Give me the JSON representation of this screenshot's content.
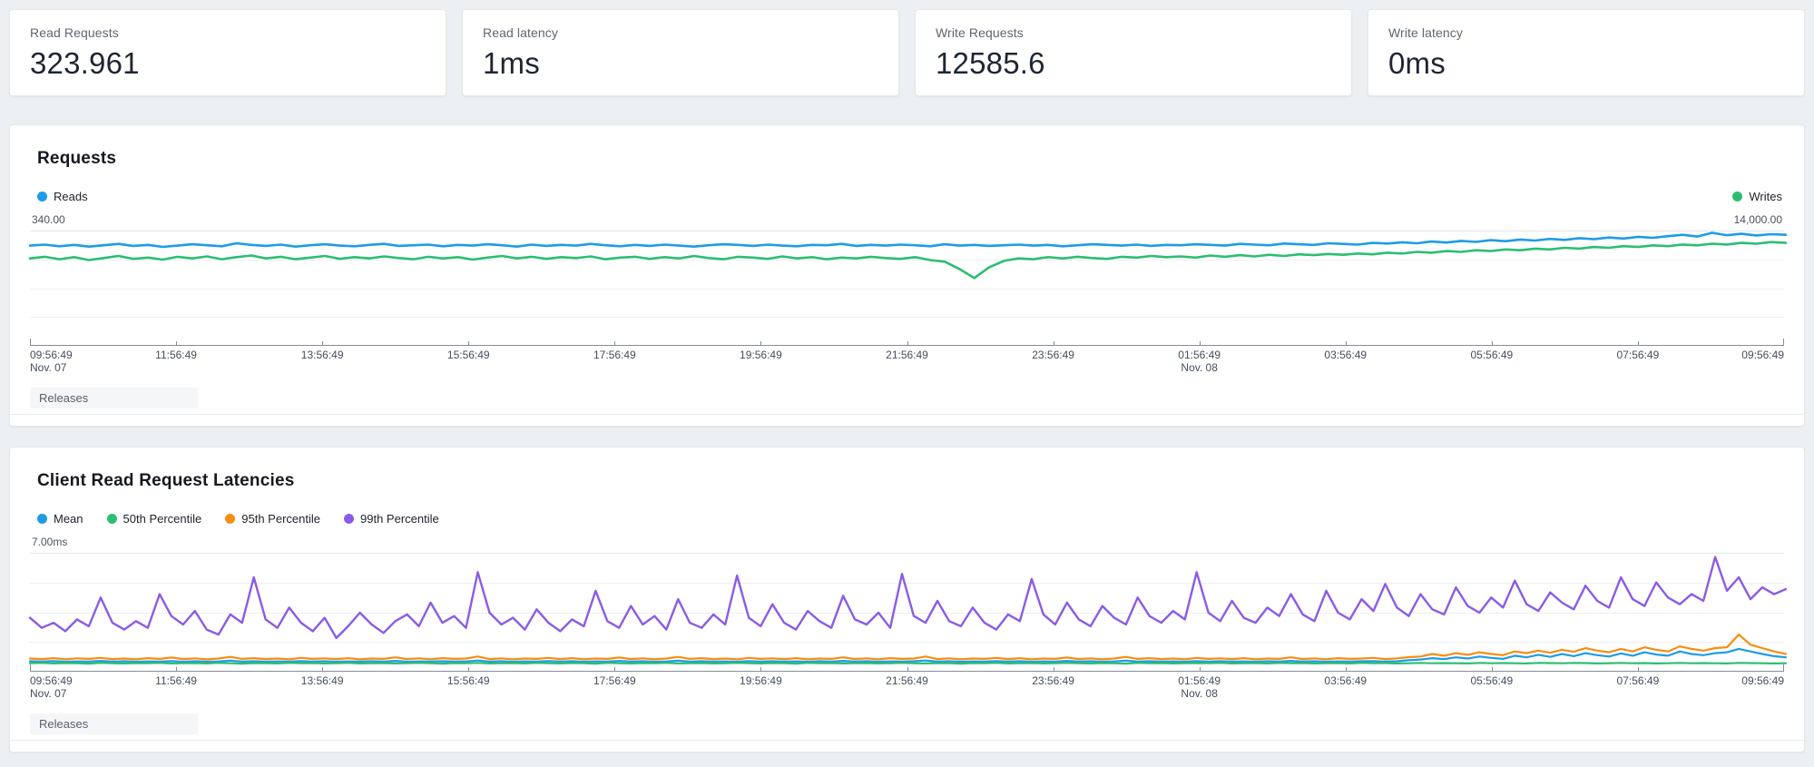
{
  "strings": {
    "releases": "Releases"
  },
  "stat_cards": [
    {
      "label": "Read Requests",
      "value": "323.961"
    },
    {
      "label": "Read latency",
      "value": "1ms"
    },
    {
      "label": "Write Requests",
      "value": "12585.6"
    },
    {
      "label": "Write latency",
      "value": "0ms"
    }
  ],
  "colors": {
    "blue": "#1e9ce6",
    "green": "#2cbe72",
    "orange": "#f88d11",
    "purple": "#8a5ce6",
    "page_bg": "#edf0f3",
    "panel_bg": "#ffffff",
    "axis": "#868d99",
    "grid": "#edeff2"
  },
  "chart_data": [
    {
      "type": "line",
      "title": "Requests",
      "y_axis_left": "340.00",
      "y_axis_right": "14,000.00",
      "ylim_left": [
        0,
        340
      ],
      "ylim_right": [
        0,
        14000
      ],
      "grid": "on",
      "legend_position": "split",
      "x_categories": [
        {
          "t": "09:56:49",
          "sub": "Nov. 07"
        },
        {
          "t": "11:56:49"
        },
        {
          "t": "13:56:49"
        },
        {
          "t": "15:56:49"
        },
        {
          "t": "17:56:49"
        },
        {
          "t": "19:56:49"
        },
        {
          "t": "21:56:49"
        },
        {
          "t": "23:56:49"
        },
        {
          "t": "01:56:49",
          "sub": "Nov. 08"
        },
        {
          "t": "03:56:49"
        },
        {
          "t": "05:56:49"
        },
        {
          "t": "07:56:49"
        },
        {
          "t": "09:56:49"
        }
      ],
      "series": [
        {
          "name": "Reads",
          "color": "#1e9ce6",
          "legend_side": "left",
          "axis_max": 340,
          "width": 2.6,
          "values": [
            298,
            301,
            296,
            300,
            295,
            299,
            303,
            297,
            300,
            294,
            298,
            302,
            299,
            296,
            305,
            300,
            297,
            301,
            295,
            299,
            302,
            298,
            296,
            300,
            303,
            297,
            299,
            301,
            296,
            300,
            298,
            302,
            299,
            295,
            301,
            297,
            300,
            298,
            303,
            299,
            296,
            300,
            297,
            301,
            298,
            295,
            299,
            302,
            300,
            297,
            301,
            298,
            296,
            300,
            299,
            303,
            297,
            300,
            298,
            301,
            299,
            296,
            302,
            298,
            300,
            297,
            299,
            301,
            298,
            300,
            296,
            299,
            302,
            300,
            298,
            301,
            297,
            300,
            299,
            302,
            300,
            298,
            303,
            301,
            299,
            304,
            302,
            300,
            305,
            303,
            301,
            306,
            304,
            308,
            305,
            310,
            307,
            312,
            309,
            314,
            311,
            316,
            313,
            318,
            315,
            320,
            317,
            322,
            319,
            324,
            321,
            326,
            330,
            325,
            336,
            329,
            333,
            328,
            332,
            330
          ]
        },
        {
          "name": "Writes",
          "color": "#2cbe72",
          "legend_side": "right",
          "axis_max": 14000,
          "width": 2.6,
          "values": [
            10700,
            10900,
            10600,
            10850,
            10500,
            10750,
            11000,
            10650,
            10800,
            10550,
            10900,
            10700,
            10950,
            10600,
            10850,
            11050,
            10700,
            10900,
            10600,
            10800,
            11000,
            10650,
            10850,
            10700,
            10950,
            10750,
            10600,
            10900,
            10700,
            10850,
            10550,
            10800,
            11000,
            10700,
            10900,
            10650,
            10850,
            10750,
            10950,
            10600,
            10800,
            10900,
            10650,
            10850,
            10700,
            11000,
            10750,
            10600,
            10900,
            10800,
            10650,
            10950,
            10700,
            10850,
            10600,
            10800,
            10700,
            10900,
            10750,
            10650,
            10850,
            10500,
            10300,
            9400,
            8300,
            9600,
            10400,
            10700,
            10600,
            10850,
            10700,
            10900,
            10750,
            10650,
            10900,
            10800,
            11000,
            10850,
            10950,
            10800,
            11050,
            10900,
            11100,
            10950,
            11150,
            11000,
            11200,
            11100,
            11250,
            11150,
            11300,
            11200,
            11400,
            11300,
            11500,
            11400,
            11600,
            11500,
            11700,
            11600,
            11800,
            11700,
            11900,
            11800,
            12000,
            11900,
            12100,
            12000,
            12200,
            12100,
            12300,
            12200,
            12400,
            12300,
            12500,
            12400,
            12600,
            12500,
            12700,
            12600
          ]
        }
      ]
    },
    {
      "type": "line",
      "title": "Client Read Request Latencies",
      "y_axis_left": "7.00ms",
      "y_axis_right": "",
      "ylim_left": [
        0,
        7
      ],
      "grid": "on",
      "legend_position": "left",
      "x_categories": [
        {
          "t": "09:56:49",
          "sub": "Nov. 07"
        },
        {
          "t": "11:56:49"
        },
        {
          "t": "13:56:49"
        },
        {
          "t": "15:56:49"
        },
        {
          "t": "17:56:49"
        },
        {
          "t": "19:56:49"
        },
        {
          "t": "21:56:49"
        },
        {
          "t": "23:56:49"
        },
        {
          "t": "01:56:49",
          "sub": "Nov. 08"
        },
        {
          "t": "03:56:49"
        },
        {
          "t": "05:56:49"
        },
        {
          "t": "07:56:49"
        },
        {
          "t": "09:56:49"
        }
      ],
      "series": [
        {
          "name": "Mean",
          "color": "#1e9ce6",
          "legend_side": "left",
          "axis_max": 7,
          "width": 2.2,
          "values": [
            0.62,
            0.6,
            0.63,
            0.59,
            0.61,
            0.6,
            0.64,
            0.6,
            0.62,
            0.59,
            0.61,
            0.6,
            0.63,
            0.59,
            0.62,
            0.6,
            0.61,
            0.65,
            0.6,
            0.62,
            0.59,
            0.61,
            0.6,
            0.63,
            0.6,
            0.62,
            0.59,
            0.61,
            0.6,
            0.62,
            0.6,
            0.64,
            0.59,
            0.61,
            0.6,
            0.62,
            0.6,
            0.61,
            0.66,
            0.6,
            0.62,
            0.59,
            0.61,
            0.6,
            0.63,
            0.6,
            0.62,
            0.59,
            0.61,
            0.6,
            0.64,
            0.6,
            0.62,
            0.59,
            0.61,
            0.65,
            0.6,
            0.62,
            0.6,
            0.61,
            0.59,
            0.63,
            0.6,
            0.62,
            0.6,
            0.61,
            0.59,
            0.62,
            0.6,
            0.64,
            0.6,
            0.62,
            0.59,
            0.61,
            0.6,
            0.62,
            0.66,
            0.6,
            0.62,
            0.59,
            0.61,
            0.6,
            0.63,
            0.6,
            0.62,
            0.59,
            0.61,
            0.6,
            0.64,
            0.6,
            0.62,
            0.59,
            0.61,
            0.65,
            0.6,
            0.62,
            0.6,
            0.61,
            0.59,
            0.63,
            0.6,
            0.62,
            0.6,
            0.61,
            0.59,
            0.62,
            0.6,
            0.64,
            0.6,
            0.62,
            0.59,
            0.61,
            0.6,
            0.62,
            0.63,
            0.6,
            0.62,
            0.68,
            0.72,
            0.8,
            0.75,
            0.85,
            0.78,
            0.9,
            0.82,
            0.76,
            0.95,
            0.85,
            1.0,
            0.88,
            1.05,
            0.92,
            1.1,
            0.98,
            0.9,
            1.08,
            0.95,
            1.15,
            1.02,
            0.95,
            1.2,
            1.05,
            0.98,
            1.1,
            1.15,
            1.35,
            1.2,
            1.05,
            0.92,
            0.85
          ]
        },
        {
          "name": "50th Percentile",
          "color": "#2cbe72",
          "legend_side": "left",
          "axis_max": 7,
          "width": 2.2,
          "values": [
            0.5,
            0.52,
            0.49,
            0.51,
            0.5,
            0.48,
            0.52,
            0.5,
            0.49,
            0.51,
            0.5,
            0.52,
            0.49,
            0.5,
            0.51,
            0.49,
            0.52,
            0.5,
            0.48,
            0.51,
            0.5,
            0.49,
            0.52,
            0.5,
            0.51,
            0.49,
            0.5,
            0.52,
            0.49,
            0.5,
            0.51,
            0.49,
            0.5,
            0.52,
            0.5,
            0.48,
            0.51,
            0.5,
            0.52,
            0.49,
            0.5,
            0.51,
            0.49,
            0.52,
            0.5,
            0.49,
            0.51,
            0.5,
            0.48,
            0.52,
            0.5,
            0.49,
            0.51,
            0.5,
            0.52,
            0.49,
            0.5,
            0.51,
            0.49,
            0.5,
            0.52,
            0.5,
            0.49,
            0.51,
            0.5,
            0.48,
            0.52,
            0.5,
            0.51,
            0.49,
            0.5,
            0.51,
            0.49,
            0.5,
            0.52,
            0.5,
            0.49,
            0.51,
            0.5,
            0.48,
            0.51,
            0.5,
            0.52,
            0.49,
            0.5,
            0.51,
            0.49,
            0.5,
            0.52,
            0.5,
            0.49,
            0.51,
            0.5,
            0.48,
            0.52,
            0.5,
            0.51,
            0.49,
            0.5,
            0.51,
            0.5,
            0.52,
            0.49,
            0.5,
            0.51,
            0.49,
            0.52,
            0.5,
            0.51,
            0.49,
            0.5,
            0.51,
            0.49,
            0.52,
            0.5,
            0.51,
            0.49,
            0.5,
            0.52,
            0.5,
            0.51,
            0.5,
            0.49,
            0.52,
            0.5,
            0.51,
            0.5,
            0.49,
            0.52,
            0.51,
            0.5,
            0.52,
            0.51,
            0.49,
            0.5,
            0.52,
            0.5,
            0.51,
            0.49,
            0.5,
            0.52,
            0.5,
            0.51,
            0.5,
            0.49,
            0.52,
            0.51,
            0.5,
            0.49,
            0.5
          ]
        },
        {
          "name": "95th Percentile",
          "color": "#f88d11",
          "legend_side": "left",
          "axis_max": 7,
          "width": 2.2,
          "values": [
            0.78,
            0.75,
            0.8,
            0.74,
            0.79,
            0.76,
            0.82,
            0.75,
            0.78,
            0.74,
            0.8,
            0.76,
            0.84,
            0.75,
            0.79,
            0.74,
            0.78,
            0.88,
            0.76,
            0.8,
            0.75,
            0.78,
            0.74,
            0.82,
            0.76,
            0.79,
            0.75,
            0.8,
            0.74,
            0.78,
            0.76,
            0.85,
            0.75,
            0.79,
            0.74,
            0.8,
            0.76,
            0.78,
            0.9,
            0.75,
            0.79,
            0.74,
            0.78,
            0.76,
            0.82,
            0.75,
            0.8,
            0.74,
            0.78,
            0.76,
            0.84,
            0.75,
            0.79,
            0.74,
            0.78,
            0.88,
            0.76,
            0.8,
            0.75,
            0.78,
            0.74,
            0.82,
            0.76,
            0.79,
            0.75,
            0.8,
            0.74,
            0.78,
            0.76,
            0.85,
            0.75,
            0.79,
            0.74,
            0.8,
            0.76,
            0.78,
            0.9,
            0.75,
            0.79,
            0.74,
            0.78,
            0.76,
            0.82,
            0.75,
            0.8,
            0.74,
            0.78,
            0.76,
            0.84,
            0.75,
            0.79,
            0.74,
            0.78,
            0.88,
            0.76,
            0.8,
            0.75,
            0.78,
            0.74,
            0.82,
            0.76,
            0.79,
            0.75,
            0.8,
            0.74,
            0.78,
            0.76,
            0.85,
            0.75,
            0.79,
            0.74,
            0.8,
            0.76,
            0.78,
            0.82,
            0.75,
            0.79,
            0.86,
            0.9,
            1.05,
            0.95,
            1.1,
            1.0,
            1.15,
            1.05,
            0.98,
            1.2,
            1.1,
            1.25,
            1.12,
            1.3,
            1.18,
            1.4,
            1.25,
            1.15,
            1.35,
            1.2,
            1.45,
            1.3,
            1.2,
            1.5,
            1.35,
            1.25,
            1.4,
            1.45,
            2.2,
            1.6,
            1.4,
            1.2,
            1.05
          ]
        },
        {
          "name": "99th Percentile",
          "color": "#8a5ce6",
          "legend_side": "left",
          "axis_max": 7,
          "width": 2.4,
          "values": [
            3.2,
            2.6,
            2.9,
            2.4,
            3.1,
            2.7,
            4.4,
            2.9,
            2.5,
            3.0,
            2.6,
            4.6,
            3.3,
            2.8,
            3.6,
            2.5,
            2.2,
            3.4,
            2.9,
            5.6,
            3.1,
            2.6,
            3.8,
            2.9,
            2.4,
            3.2,
            2.0,
            2.7,
            3.5,
            2.8,
            2.3,
            3.0,
            3.4,
            2.7,
            4.1,
            2.9,
            3.3,
            2.6,
            5.9,
            3.5,
            2.8,
            3.2,
            2.5,
            3.7,
            2.9,
            2.4,
            3.1,
            2.7,
            4.8,
            3.0,
            2.6,
            3.9,
            2.8,
            3.3,
            2.5,
            4.3,
            2.9,
            2.6,
            3.4,
            2.8,
            5.7,
            3.2,
            2.7,
            4.0,
            2.9,
            2.5,
            3.6,
            3.0,
            2.6,
            4.5,
            3.1,
            2.8,
            3.5,
            2.6,
            5.8,
            3.3,
            2.9,
            4.2,
            3.0,
            2.7,
            3.8,
            2.9,
            2.5,
            3.4,
            3.0,
            5.5,
            3.4,
            2.8,
            4.1,
            3.1,
            2.7,
            3.9,
            3.2,
            2.8,
            4.4,
            3.3,
            2.9,
            3.6,
            3.1,
            5.9,
            3.5,
            3.0,
            4.2,
            3.2,
            2.9,
            3.8,
            3.3,
            4.6,
            3.4,
            3.0,
            4.8,
            3.5,
            3.1,
            4.3,
            3.6,
            5.2,
            3.8,
            3.3,
            4.6,
            3.7,
            3.4,
            5.0,
            3.9,
            3.5,
            4.4,
            3.8,
            5.4,
            4.0,
            3.6,
            4.7,
            4.1,
            3.7,
            5.1,
            4.2,
            3.8,
            5.6,
            4.3,
            3.9,
            5.3,
            4.4,
            4.0,
            4.6,
            4.2,
            6.8,
            4.8,
            5.6,
            4.3,
            5.0,
            4.6,
            4.9
          ]
        }
      ]
    }
  ]
}
